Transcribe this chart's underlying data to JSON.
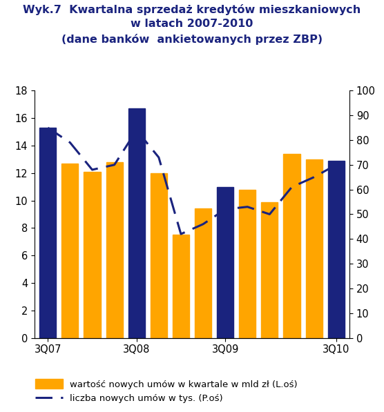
{
  "title_lines": [
    "Wyk.7  Kwartalna sprzedaż kredytów mieszkaniowych",
    "w latach 2007-2010",
    "(dane banków  ankietowanych przez ZBP)"
  ],
  "n_bars": 14,
  "bar_values": [
    15.3,
    12.7,
    12.1,
    12.8,
    16.7,
    12.0,
    7.5,
    9.4,
    11.0,
    10.8,
    9.9,
    13.4,
    13.0,
    12.9
  ],
  "bar_colors": [
    "#1a237e",
    "#FFA500",
    "#FFA500",
    "#FFA500",
    "#1a237e",
    "#FFA500",
    "#FFA500",
    "#FFA500",
    "#1a237e",
    "#FFA500",
    "#FFA500",
    "#FFA500",
    "#FFA500",
    "#1a237e"
  ],
  "line_values": [
    85,
    79,
    68,
    70,
    84,
    73,
    42,
    46,
    52,
    53,
    50,
    61,
    65,
    70
  ],
  "xtick_positions": [
    0,
    4,
    8,
    13
  ],
  "xtick_labels": [
    "3Q07",
    "3Q08",
    "3Q09",
    "3Q10"
  ],
  "left_ylim": [
    0,
    18
  ],
  "left_yticks": [
    0,
    2,
    4,
    6,
    8,
    10,
    12,
    14,
    16,
    18
  ],
  "right_ylim": [
    0,
    100
  ],
  "right_yticks": [
    0,
    10,
    20,
    30,
    40,
    50,
    60,
    70,
    80,
    90,
    100
  ],
  "bar_width": 0.75,
  "navy_color": "#1a237e",
  "orange_color": "#FFA500",
  "line_dash": [
    8,
    4
  ],
  "line_width": 2.2,
  "title_color": "#1a237e",
  "title_fontsize": 11.5,
  "tick_fontsize": 10.5,
  "legend_fontsize": 9.5,
  "legend_label_bar": "wartość nowych umów w kwartale w mld zł (L.oś)",
  "legend_label_line": "liczba nowych umów w tys. (P.oś)",
  "fig_width": 5.56,
  "fig_height": 5.97,
  "dpi": 100
}
